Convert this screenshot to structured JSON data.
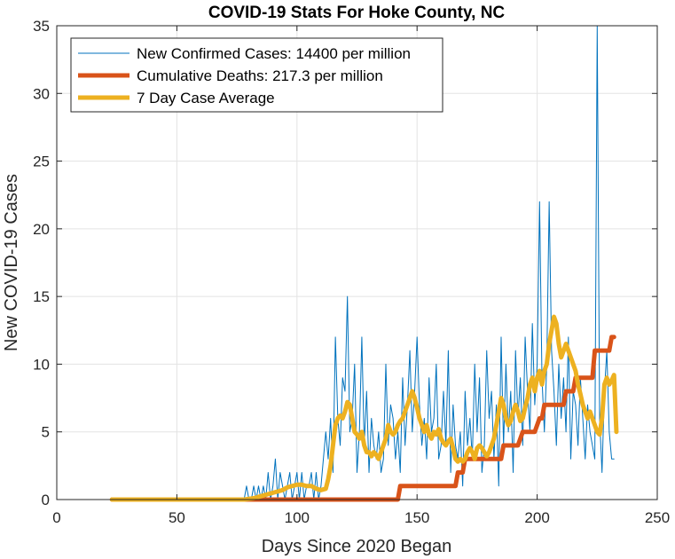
{
  "chart_data": {
    "type": "line",
    "title": "COVID-19 Stats For Hoke County, NC",
    "xlabel": "Days Since 2020 Began",
    "ylabel": "New COVID-19 Cases",
    "xlim": [
      0,
      250
    ],
    "ylim": [
      0,
      35
    ],
    "xticks": [
      0,
      50,
      100,
      150,
      200,
      250
    ],
    "yticks": [
      0,
      5,
      10,
      15,
      20,
      25,
      30,
      35
    ],
    "grid": true,
    "legend_position": "top-left",
    "series": [
      {
        "name": "New Confirmed Cases: 14400 per million",
        "color": "#0072BD",
        "x": [
          23,
          25,
          30,
          35,
          40,
          45,
          50,
          55,
          60,
          65,
          70,
          75,
          78,
          79,
          80,
          81,
          82,
          83,
          84,
          85,
          86,
          87,
          88,
          89,
          90,
          91,
          92,
          93,
          94,
          95,
          96,
          97,
          98,
          99,
          100,
          101,
          102,
          103,
          104,
          105,
          106,
          107,
          108,
          109,
          110,
          111,
          112,
          113,
          114,
          115,
          116,
          117,
          118,
          119,
          120,
          121,
          122,
          123,
          124,
          125,
          126,
          127,
          128,
          129,
          130,
          131,
          132,
          133,
          134,
          135,
          136,
          137,
          138,
          139,
          140,
          141,
          142,
          143,
          144,
          145,
          146,
          147,
          148,
          149,
          150,
          151,
          152,
          153,
          154,
          155,
          156,
          157,
          158,
          159,
          160,
          161,
          162,
          163,
          164,
          165,
          166,
          167,
          168,
          169,
          170,
          171,
          172,
          173,
          174,
          175,
          176,
          177,
          178,
          179,
          180,
          181,
          182,
          183,
          184,
          185,
          186,
          187,
          188,
          189,
          190,
          191,
          192,
          193,
          194,
          195,
          196,
          197,
          198,
          199,
          200,
          201,
          202,
          203,
          204,
          205,
          206,
          207,
          208,
          209,
          210,
          211,
          212,
          213,
          214,
          215,
          216,
          217,
          218,
          219,
          220,
          221,
          222,
          223,
          224,
          225,
          226,
          227,
          228,
          229,
          230,
          231,
          232
        ],
        "y": [
          0,
          0,
          0,
          0,
          0,
          0,
          0,
          0,
          0,
          0,
          0,
          0,
          0,
          1,
          0,
          0,
          1,
          0,
          1,
          0,
          1,
          0,
          2,
          0,
          1,
          3,
          0,
          2,
          1,
          0,
          1,
          2,
          0,
          1,
          2,
          0,
          2,
          0,
          1,
          1,
          2,
          0,
          2,
          0,
          1,
          3,
          5,
          3,
          6,
          2,
          12,
          6,
          4,
          9,
          8,
          15,
          5,
          6,
          10,
          2,
          5,
          12,
          4,
          8,
          2,
          6,
          4,
          3,
          5,
          2,
          3,
          10,
          4,
          7,
          6,
          3,
          5,
          2,
          9,
          4,
          7,
          11,
          5,
          8,
          12,
          7,
          4,
          6,
          3,
          9,
          5,
          6,
          10,
          3,
          4,
          8,
          4,
          11,
          2,
          7,
          4,
          3,
          5,
          1,
          8,
          4,
          6,
          3,
          10,
          5,
          9,
          2,
          4,
          11,
          6,
          8,
          3,
          7,
          1,
          12,
          4,
          10,
          5,
          8,
          2,
          11,
          6,
          9,
          4,
          12,
          8,
          5,
          13,
          7,
          10,
          22,
          9,
          5,
          10,
          22,
          11,
          8,
          4,
          10,
          6,
          9,
          5,
          12,
          3,
          8,
          7,
          4,
          9,
          6,
          3,
          7,
          5,
          4,
          3,
          35,
          6,
          2,
          8,
          11,
          5,
          3,
          3
        ],
        "stroke_width": 1
      },
      {
        "name": "Cumulative Deaths: 217.3 per million",
        "color": "#D95319",
        "x": [
          23,
          142,
          143,
          166,
          167,
          168,
          169,
          170,
          171,
          184,
          185,
          186,
          187,
          191,
          192,
          194,
          195,
          196,
          197,
          198,
          199,
          201,
          202,
          203,
          204,
          205,
          206,
          207,
          208,
          209,
          210,
          211,
          212,
          213,
          214,
          215,
          216,
          217,
          218,
          219,
          220,
          221,
          222,
          223,
          224,
          225,
          226,
          227,
          228,
          229,
          230,
          231,
          232
        ],
        "y": [
          0,
          0,
          1,
          1,
          2,
          2,
          2,
          3,
          3,
          3,
          3,
          4,
          4,
          4,
          4,
          5,
          5,
          5,
          5,
          5,
          5,
          6,
          6,
          7,
          7,
          7,
          7,
          7,
          7,
          7,
          7,
          7,
          8,
          8,
          8,
          8,
          9,
          9,
          9,
          9,
          9,
          9,
          9,
          9,
          11,
          11,
          11,
          11,
          11,
          11,
          11,
          12,
          12
        ],
        "stroke_width": 5
      },
      {
        "name": "7 Day Case Average",
        "color": "#EDB120",
        "x": [
          23,
          40,
          60,
          78,
          82,
          86,
          88,
          90,
          92,
          94,
          96,
          98,
          100,
          102,
          104,
          106,
          108,
          110,
          112,
          113,
          114,
          115,
          116,
          117,
          118,
          119,
          120,
          121,
          122,
          123,
          124,
          125,
          126,
          127,
          128,
          129,
          130,
          131,
          132,
          133,
          134,
          135,
          136,
          137,
          138,
          139,
          140,
          141,
          142,
          143,
          144,
          145,
          146,
          147,
          148,
          149,
          150,
          151,
          152,
          153,
          154,
          155,
          156,
          157,
          158,
          159,
          160,
          161,
          162,
          163,
          164,
          165,
          166,
          167,
          168,
          169,
          170,
          171,
          172,
          173,
          174,
          175,
          176,
          177,
          178,
          179,
          180,
          181,
          182,
          183,
          184,
          185,
          186,
          187,
          188,
          189,
          190,
          191,
          192,
          193,
          194,
          195,
          196,
          197,
          198,
          199,
          200,
          201,
          202,
          203,
          204,
          205,
          206,
          207,
          208,
          209,
          210,
          211,
          212,
          213,
          214,
          215,
          216,
          217,
          218,
          219,
          220,
          221,
          222,
          223,
          224,
          225,
          226,
          227,
          228,
          229,
          230,
          231,
          232,
          233
        ],
        "y": [
          0,
          0,
          0,
          0,
          0.1,
          0.3,
          0.4,
          0.5,
          0.6,
          0.7,
          0.9,
          1.0,
          1.1,
          1.1,
          1.0,
          1.0,
          0.8,
          0.7,
          0.8,
          1.5,
          2.5,
          4.0,
          5.5,
          6.0,
          6.2,
          6.0,
          6.5,
          7.2,
          7.0,
          6.0,
          5.0,
          4.8,
          4.5,
          5.0,
          4.0,
          3.5,
          3.5,
          3.2,
          3.5,
          3.3,
          3.0,
          3.5,
          4.0,
          4.5,
          5.5,
          5.0,
          4.8,
          5.0,
          5.5,
          5.8,
          6.0,
          6.5,
          7.0,
          7.5,
          8.0,
          7.5,
          6.8,
          6.0,
          5.5,
          5.0,
          5.5,
          4.8,
          4.5,
          5.0,
          4.8,
          5.2,
          4.5,
          4.2,
          4.0,
          4.3,
          4.5,
          3.8,
          3.0,
          2.8,
          3.0,
          2.8,
          3.0,
          3.5,
          3.8,
          3.5,
          3.0,
          3.8,
          4.0,
          3.8,
          3.5,
          3.2,
          3.5,
          4.0,
          4.5,
          5.5,
          6.5,
          7.5,
          7.0,
          6.0,
          5.5,
          5.8,
          6.5,
          7.0,
          6.5,
          5.8,
          6.0,
          6.8,
          7.5,
          8.5,
          9.0,
          8.0,
          9.0,
          9.5,
          8.5,
          9.5,
          10.0,
          11.5,
          12.5,
          13.5,
          13.0,
          11.5,
          10.5,
          11.0,
          11.5,
          11.0,
          10.5,
          10.0,
          9.5,
          8.5,
          7.8,
          7.0,
          6.5,
          6.0,
          6.5,
          6.0,
          5.5,
          5.0,
          4.8,
          6.0,
          8.5,
          9.0,
          8.5,
          8.8,
          9.2,
          5.0
        ],
        "stroke_width": 5
      }
    ]
  }
}
